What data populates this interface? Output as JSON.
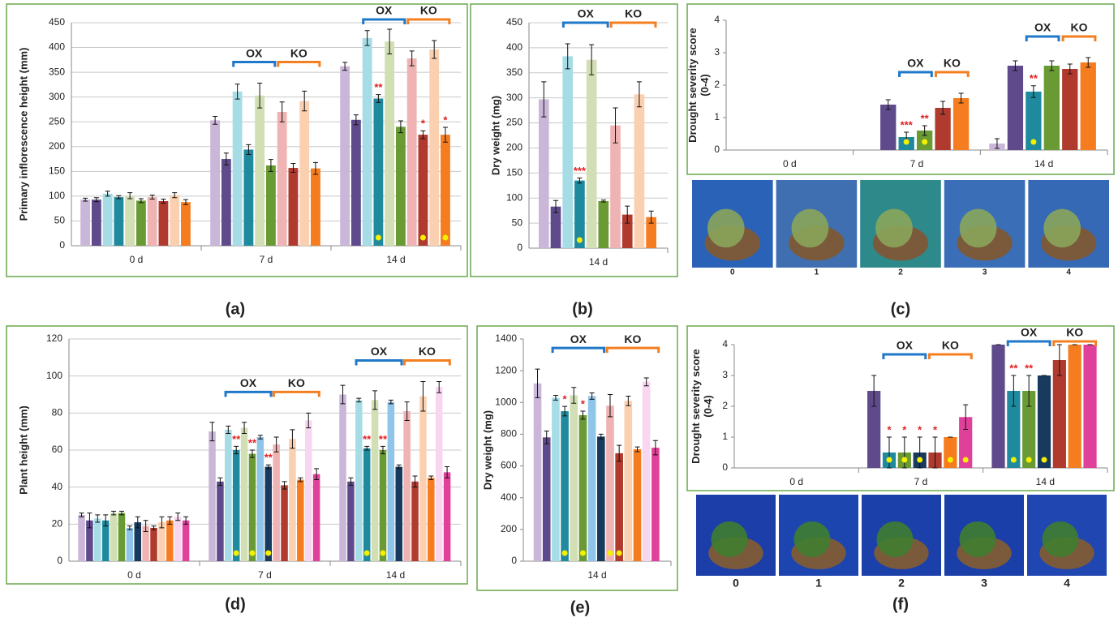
{
  "chart_data": [
    {
      "type": "bar",
      "label": "(a)",
      "y_label": [
        "Primary inflorescence height (mm)"
      ],
      "categories": [
        "0 d",
        "7 d",
        "14 d"
      ],
      "ylim": [
        0,
        450
      ],
      "yticks": [
        0,
        50,
        100,
        150,
        200,
        250,
        300,
        350,
        400,
        450
      ],
      "grid": true,
      "groups": [
        {
          "label": "OX",
          "from": 2,
          "to": 5,
          "color": "#1f78c8"
        },
        {
          "label": "KO",
          "from": 6,
          "to": 9,
          "color": "#f47f20"
        }
      ],
      "group_categories": [
        1,
        2
      ],
      "series": [
        {
          "color": "#c9b6d9",
          "values": [
            93,
            253,
            362
          ],
          "errors": [
            3,
            8,
            8
          ]
        },
        {
          "color": "#5f4a8b",
          "values": [
            93,
            175,
            254
          ],
          "errors": [
            4,
            12,
            10
          ]
        },
        {
          "color": "#a6dce5",
          "values": [
            105,
            311,
            419
          ],
          "errors": [
            5,
            15,
            15
          ]
        },
        {
          "color": "#1f8a9e",
          "values": [
            98,
            194,
            297
          ],
          "errors": [
            3,
            10,
            8
          ],
          "stars": [
            null,
            null,
            "**"
          ],
          "dots": [
            false,
            false,
            true
          ]
        },
        {
          "color": "#d2dfb4",
          "values": [
            101,
            303,
            412
          ],
          "errors": [
            6,
            25,
            25
          ]
        },
        {
          "color": "#6a9a33",
          "values": [
            91,
            162,
            240
          ],
          "errors": [
            4,
            12,
            12
          ]
        },
        {
          "color": "#f0b3b3",
          "values": [
            98,
            270,
            378
          ],
          "errors": [
            4,
            20,
            15
          ]
        },
        {
          "color": "#b03a2e",
          "values": [
            90,
            157,
            224
          ],
          "errors": [
            4,
            9,
            8
          ],
          "stars": [
            null,
            null,
            "*"
          ],
          "dots": [
            false,
            false,
            true
          ]
        },
        {
          "color": "#fbd0b0",
          "values": [
            102,
            292,
            396
          ],
          "errors": [
            5,
            20,
            18
          ]
        },
        {
          "color": "#f57c1f",
          "values": [
            88,
            156,
            224
          ],
          "errors": [
            5,
            12,
            15
          ],
          "stars": [
            null,
            null,
            "*"
          ],
          "dots": [
            false,
            false,
            true
          ]
        }
      ]
    },
    {
      "type": "bar",
      "label": "(b)",
      "y_label": [
        "Dry weight (mg)"
      ],
      "categories": [
        "14 d"
      ],
      "ylim": [
        0,
        450
      ],
      "yticks": [
        0,
        50,
        100,
        150,
        200,
        250,
        300,
        350,
        400,
        450
      ],
      "grid": true,
      "groups": [
        {
          "label": "OX",
          "from": 2,
          "to": 5,
          "color": "#1f78c8"
        },
        {
          "label": "KO",
          "from": 6,
          "to": 9,
          "color": "#f47f20"
        }
      ],
      "group_categories": [
        0
      ],
      "series": [
        {
          "color": "#c9b6d9",
          "values": [
            297
          ],
          "errors": [
            35
          ]
        },
        {
          "color": "#5f4a8b",
          "values": [
            83
          ],
          "errors": [
            12
          ]
        },
        {
          "color": "#a6dce5",
          "values": [
            383
          ],
          "errors": [
            25
          ]
        },
        {
          "color": "#1f8a9e",
          "values": [
            135
          ],
          "errors": [
            5
          ],
          "stars": [
            "***"
          ],
          "dots": [
            true
          ]
        },
        {
          "color": "#d2dfb4",
          "values": [
            376
          ],
          "errors": [
            30
          ]
        },
        {
          "color": "#6a9a33",
          "values": [
            94
          ],
          "errors": [
            2
          ]
        },
        {
          "color": "#f0b3b3",
          "values": [
            245
          ],
          "errors": [
            35
          ]
        },
        {
          "color": "#b03a2e",
          "values": [
            67
          ],
          "errors": [
            17
          ]
        },
        {
          "color": "#fbd0b0",
          "values": [
            307
          ],
          "errors": [
            25
          ]
        },
        {
          "color": "#f57c1f",
          "values": [
            62
          ],
          "errors": [
            12
          ]
        }
      ]
    },
    {
      "type": "bar",
      "label": "(c)",
      "y_label": [
        "Drought severity score",
        "(0-4)"
      ],
      "categories": [
        "0 d",
        "7 d",
        "14 d"
      ],
      "ylim": [
        0,
        4
      ],
      "yticks": [
        0,
        1,
        2,
        3,
        4
      ],
      "grid": false,
      "groups": [
        {
          "label": "OX",
          "from": 2,
          "to": 3,
          "color": "#1f78c8"
        },
        {
          "label": "KO",
          "from": 4,
          "to": 5,
          "color": "#f47f20"
        }
      ],
      "group_categories": [
        1,
        2
      ],
      "series": [
        {
          "color": "#c9b6d9",
          "values": [
            null,
            null,
            0.2
          ],
          "errors": [
            null,
            null,
            0.15
          ]
        },
        {
          "color": "#5f4a8b",
          "values": [
            null,
            1.4,
            2.6
          ],
          "errors": [
            null,
            0.15,
            0.15
          ]
        },
        {
          "color": "#1f8a9e",
          "values": [
            null,
            0.4,
            1.8
          ],
          "errors": [
            null,
            0.15,
            0.18
          ],
          "stars": [
            null,
            "***",
            "**"
          ],
          "dots": [
            false,
            true,
            true
          ]
        },
        {
          "color": "#6a9a33",
          "values": [
            null,
            0.6,
            2.6
          ],
          "errors": [
            null,
            0.15,
            0.15
          ],
          "stars": [
            null,
            "**",
            null
          ],
          "dots": [
            false,
            true,
            false
          ]
        },
        {
          "color": "#b03a2e",
          "values": [
            null,
            1.3,
            2.5
          ],
          "errors": [
            null,
            0.2,
            0.15
          ]
        },
        {
          "color": "#f57c1f",
          "values": [
            null,
            1.6,
            2.7
          ],
          "errors": [
            null,
            0.15,
            0.15
          ]
        }
      ]
    },
    {
      "type": "bar",
      "label": "(d)",
      "y_label": [
        "Plant height (mm)"
      ],
      "categories": [
        "0 d",
        "7 d",
        "14 d"
      ],
      "ylim": [
        0,
        120
      ],
      "yticks": [
        0,
        20,
        40,
        60,
        80,
        100,
        120
      ],
      "grid": true,
      "groups": [
        {
          "label": "OX",
          "from": 2,
          "to": 7,
          "color": "#1f78c8"
        },
        {
          "label": "KO",
          "from": 8,
          "to": 13,
          "color": "#f47f20"
        }
      ],
      "group_categories": [
        1,
        2
      ],
      "series": [
        {
          "color": "#c9b6d9",
          "values": [
            25,
            70,
            90
          ],
          "errors": [
            1,
            5,
            5
          ]
        },
        {
          "color": "#5f4a8b",
          "values": [
            22,
            43,
            43
          ],
          "errors": [
            4,
            2,
            2
          ]
        },
        {
          "color": "#a6dce5",
          "values": [
            23,
            71,
            87
          ],
          "errors": [
            2,
            2,
            1
          ]
        },
        {
          "color": "#1f8a9e",
          "values": [
            22,
            60,
            61
          ],
          "errors": [
            3,
            2,
            1
          ],
          "stars": [
            null,
            "**",
            "**"
          ],
          "dots": [
            false,
            true,
            true
          ]
        },
        {
          "color": "#d2dfb4",
          "values": [
            26,
            72,
            87
          ],
          "errors": [
            1,
            3,
            5
          ]
        },
        {
          "color": "#6a9a33",
          "values": [
            26,
            58,
            60
          ],
          "errors": [
            1,
            2,
            2
          ],
          "stars": [
            null,
            "**",
            "**"
          ],
          "dots": [
            false,
            true,
            true
          ]
        },
        {
          "color": "#8ec5e8",
          "values": [
            18,
            67,
            86
          ],
          "errors": [
            1,
            1,
            1
          ]
        },
        {
          "color": "#173a5e",
          "values": [
            21,
            51,
            51
          ],
          "errors": [
            3,
            1,
            1
          ],
          "stars": [
            null,
            "**",
            null
          ],
          "dots": [
            false,
            true,
            false
          ]
        },
        {
          "color": "#f0b3b3",
          "values": [
            19,
            63,
            81
          ],
          "errors": [
            3,
            4,
            5
          ]
        },
        {
          "color": "#b03a2e",
          "values": [
            18,
            41,
            43
          ],
          "errors": [
            1,
            2,
            3
          ]
        },
        {
          "color": "#fbd0b0",
          "values": [
            21,
            66,
            89
          ],
          "errors": [
            3,
            5,
            8
          ]
        },
        {
          "color": "#f57c1f",
          "values": [
            22,
            44,
            45
          ],
          "errors": [
            2,
            1,
            1
          ]
        },
        {
          "color": "#f9d6f0",
          "values": [
            24,
            76,
            94
          ],
          "errors": [
            2,
            4,
            3
          ]
        },
        {
          "color": "#e0409a",
          "values": [
            22,
            47,
            48
          ],
          "errors": [
            2,
            3,
            3
          ]
        }
      ]
    },
    {
      "type": "bar",
      "label": "(e)",
      "y_label": [
        "Dry weight (mg)"
      ],
      "categories": [
        "14 d"
      ],
      "ylim": [
        0,
        1400
      ],
      "yticks": [
        0,
        200,
        400,
        600,
        800,
        1000,
        1200,
        1400
      ],
      "grid": false,
      "groups": [
        {
          "label": "OX",
          "from": 2,
          "to": 7,
          "color": "#1f78c8"
        },
        {
          "label": "KO",
          "from": 8,
          "to": 13,
          "color": "#f47f20"
        }
      ],
      "group_categories": [
        0
      ],
      "series": [
        {
          "color": "#c9b6d9",
          "values": [
            1120
          ],
          "errors": [
            90
          ]
        },
        {
          "color": "#5f4a8b",
          "values": [
            780
          ],
          "errors": [
            40
          ]
        },
        {
          "color": "#a6dce5",
          "values": [
            1030
          ],
          "errors": [
            15
          ]
        },
        {
          "color": "#1f8a9e",
          "values": [
            945
          ],
          "errors": [
            30
          ],
          "stars": [
            "*"
          ],
          "dots": [
            true
          ]
        },
        {
          "color": "#d2dfb4",
          "values": [
            1045
          ],
          "errors": [
            50
          ]
        },
        {
          "color": "#6a9a33",
          "values": [
            920
          ],
          "errors": [
            25
          ],
          "stars": [
            "*"
          ],
          "dots": [
            true
          ]
        },
        {
          "color": "#8ec5e8",
          "values": [
            1040
          ],
          "errors": [
            20
          ]
        },
        {
          "color": "#173a5e",
          "values": [
            785
          ],
          "errors": [
            15
          ]
        },
        {
          "color": "#f0b3b3",
          "values": [
            980
          ],
          "errors": [
            70
          ],
          "dots": [
            true
          ]
        },
        {
          "color": "#b03a2e",
          "values": [
            680
          ],
          "errors": [
            50
          ],
          "dots": [
            true
          ]
        },
        {
          "color": "#fbd0b0",
          "values": [
            1010
          ],
          "errors": [
            30
          ]
        },
        {
          "color": "#f57c1f",
          "values": [
            705
          ],
          "errors": [
            15
          ]
        },
        {
          "color": "#f9d6f0",
          "values": [
            1130
          ],
          "errors": [
            25
          ]
        },
        {
          "color": "#e0409a",
          "values": [
            715
          ],
          "errors": [
            45
          ]
        }
      ]
    },
    {
      "type": "bar",
      "label": "(f)",
      "y_label": [
        "Drought severity score",
        "(0-4)"
      ],
      "categories": [
        "0 d",
        "7 d",
        "14 d"
      ],
      "ylim": [
        0,
        4
      ],
      "yticks": [
        0,
        1,
        2,
        3,
        4
      ],
      "grid": false,
      "groups": [
        {
          "label": "OX",
          "from": 1,
          "to": 3,
          "color": "#1f78c8"
        },
        {
          "label": "KO",
          "from": 4,
          "to": 6,
          "color": "#f47f20"
        }
      ],
      "group_categories": [
        1,
        2
      ],
      "series": [
        {
          "color": "#5f4a8b",
          "values": [
            null,
            2.5,
            4
          ],
          "errors": [
            null,
            0.5,
            0
          ]
        },
        {
          "color": "#1f8a9e",
          "values": [
            null,
            0.5,
            2.5
          ],
          "errors": [
            null,
            0.5,
            0.5
          ],
          "stars": [
            null,
            "*",
            "**"
          ],
          "dots": [
            false,
            true,
            true
          ]
        },
        {
          "color": "#6a9a33",
          "values": [
            null,
            0.5,
            2.5
          ],
          "errors": [
            null,
            0.5,
            0.5
          ],
          "stars": [
            null,
            "*",
            "**"
          ],
          "dots": [
            false,
            true,
            true
          ]
        },
        {
          "color": "#173a5e",
          "values": [
            null,
            0.5,
            3
          ],
          "errors": [
            null,
            0.5,
            0
          ],
          "stars": [
            null,
            "*",
            null
          ],
          "dots": [
            false,
            true,
            true
          ]
        },
        {
          "color": "#b03a2e",
          "values": [
            null,
            0.5,
            3.5
          ],
          "errors": [
            null,
            0.5,
            0.5
          ],
          "stars": [
            null,
            "*",
            null
          ]
        },
        {
          "color": "#f57c1f",
          "values": [
            null,
            1,
            4
          ],
          "errors": [
            null,
            0,
            0
          ],
          "dots": [
            false,
            true,
            false
          ]
        },
        {
          "color": "#e0409a",
          "values": [
            null,
            1.65,
            4
          ],
          "errors": [
            null,
            0.4,
            0
          ],
          "dots": [
            false,
            true,
            false
          ]
        }
      ]
    }
  ],
  "photo_strips": [
    {
      "labels": [
        "0",
        "1",
        "2",
        "3",
        "4"
      ]
    },
    {
      "labels": [
        "0",
        "1",
        "2",
        "3",
        "4"
      ]
    }
  ]
}
